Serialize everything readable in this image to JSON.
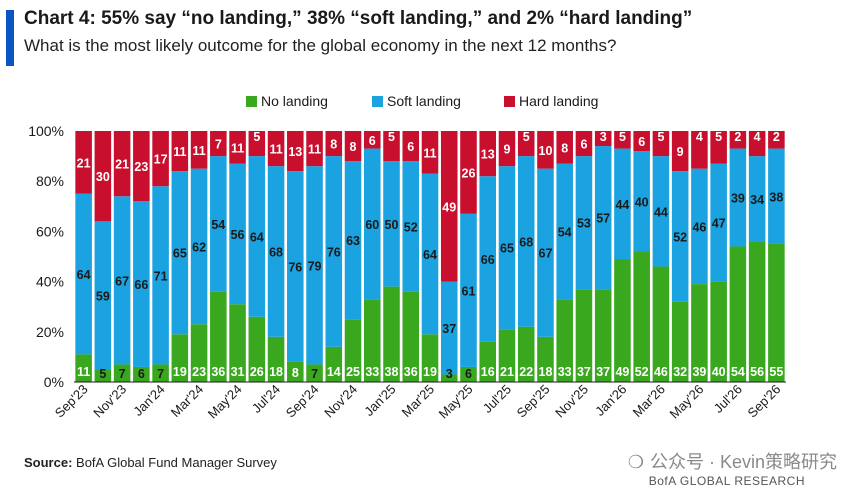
{
  "header": {
    "title": "Chart 4: 55% say “no landing,” 38% “soft landing,” and 2% “hard landing”",
    "subtitle": "What is the most likely outcome for the global economy in the next 12 months?"
  },
  "footer": {
    "source_label": "Source:",
    "source_text": " BofA Global Fund Manager Survey",
    "watermark": "公众号 · Kevin策略研究",
    "brand": "BofA GLOBAL RESEARCH"
  },
  "colors": {
    "no_landing": "#3aa81f",
    "soft_landing": "#1aa3e0",
    "hard_landing": "#c8102e",
    "accent": "#0a55c4"
  },
  "chart_data": {
    "type": "bar",
    "stacked": true,
    "title": "Chart 4: 55% say “no landing,” 38% “soft landing,” and 2% “hard landing”",
    "subtitle": "What is the most likely outcome for the global economy in the next 12 months?",
    "legend_position": "top-center",
    "ylim": [
      0,
      100
    ],
    "y_ticks": [
      "0%",
      "20%",
      "40%",
      "60%",
      "80%",
      "100%"
    ],
    "x_tick_labels": [
      "Sep'23",
      "Nov'23",
      "Jan'24",
      "Mar'24",
      "May'24",
      "Jul'24",
      "Sep'24",
      "Nov'24",
      "Jan'25",
      "Mar'25",
      "May'25",
      "Jul'25",
      "Sep'25",
      "Nov'25",
      "Jan'26",
      "Mar'26",
      "May'26",
      "Jul'26",
      "Sep'26"
    ],
    "categories": [
      "Sep'23",
      "Oct'23",
      "Nov'23",
      "Dec'23",
      "Jan'24",
      "Feb'24",
      "Mar'24",
      "Apr'24",
      "May'24",
      "Jun'24",
      "Jul'24",
      "Aug'24",
      "Sep'24",
      "Oct'24",
      "Nov'24",
      "Dec'24",
      "Jan'25",
      "Feb'25",
      "Mar'25",
      "Apr'25",
      "May'25",
      "Jun'25",
      "Jul'25",
      "Aug'25",
      "Sep'25",
      "Oct'25",
      "Nov'25",
      "Dec'25",
      "Jan'26",
      "Feb'26",
      "Mar'26",
      "Apr'26",
      "May'26",
      "Jun'26",
      "Jul'26",
      "Aug'26",
      "Sep'26"
    ],
    "series": [
      {
        "name": "No landing",
        "values": [
          11,
          5,
          7,
          6,
          7,
          19,
          23,
          36,
          31,
          26,
          18,
          8,
          7,
          14,
          25,
          33,
          38,
          36,
          19,
          3,
          6,
          16,
          21,
          22,
          18,
          33,
          37,
          37,
          49,
          52,
          46,
          32,
          39,
          40,
          54,
          56,
          55
        ]
      },
      {
        "name": "Soft landing",
        "values": [
          64,
          59,
          67,
          66,
          71,
          65,
          62,
          54,
          56,
          64,
          68,
          76,
          79,
          76,
          63,
          60,
          50,
          52,
          64,
          37,
          61,
          66,
          65,
          68,
          67,
          54,
          53,
          57,
          44,
          40,
          44,
          52,
          46,
          47,
          39,
          34,
          38
        ]
      },
      {
        "name": "Hard landing",
        "values": [
          21,
          30,
          21,
          23,
          17,
          11,
          11,
          7,
          11,
          5,
          11,
          13,
          11,
          8,
          8,
          6,
          5,
          6,
          11,
          49,
          26,
          13,
          9,
          5,
          10,
          8,
          6,
          3,
          5,
          6,
          5,
          9,
          4,
          5,
          2,
          4,
          2
        ]
      }
    ]
  }
}
